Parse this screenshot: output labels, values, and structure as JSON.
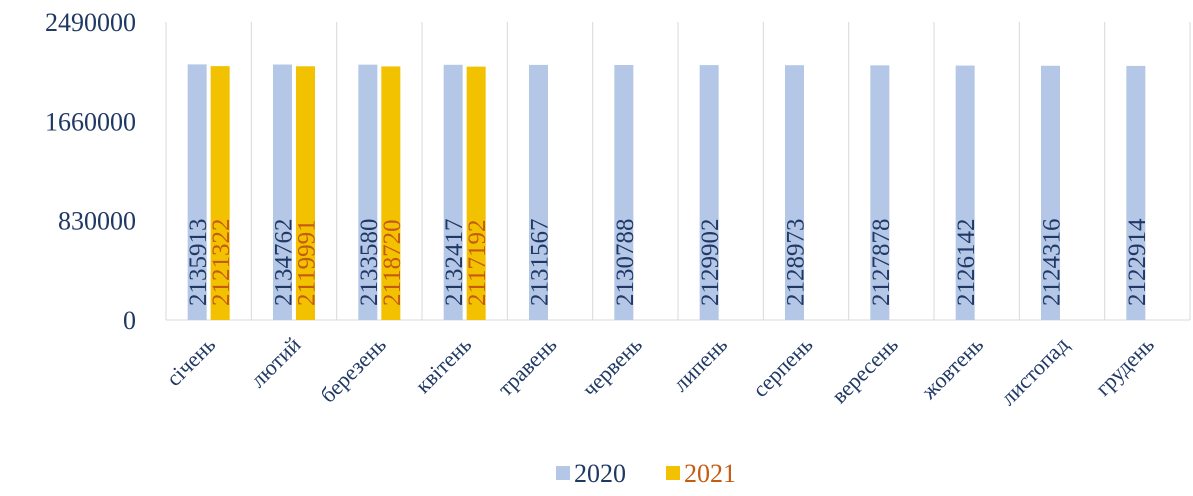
{
  "chart_data": {
    "type": "bar",
    "categories": [
      "січень",
      "лютий",
      "березень",
      "квітень",
      "травень",
      "червень",
      "липень",
      "серпень",
      "вересень",
      "жовтень",
      "листопад",
      "грудень"
    ],
    "series": [
      {
        "name": "2020",
        "color": "#b4c7e7",
        "label_color": "#1f3864",
        "values": [
          2135913,
          2134762,
          2133580,
          2132417,
          2131567,
          2130788,
          2129902,
          2128973,
          2127878,
          2126142,
          2124316,
          2122914
        ]
      },
      {
        "name": "2021",
        "color": "#f2c200",
        "label_color": "#c55a11",
        "values": [
          2121322,
          2119991,
          2118720,
          2117192,
          null,
          null,
          null,
          null,
          null,
          null,
          null,
          null
        ]
      }
    ],
    "ylim": [
      0,
      2490000
    ],
    "yticks": [
      "0",
      "830000",
      "1660000",
      "2490000"
    ],
    "grid": "vertical",
    "legend_position": "bottom"
  }
}
